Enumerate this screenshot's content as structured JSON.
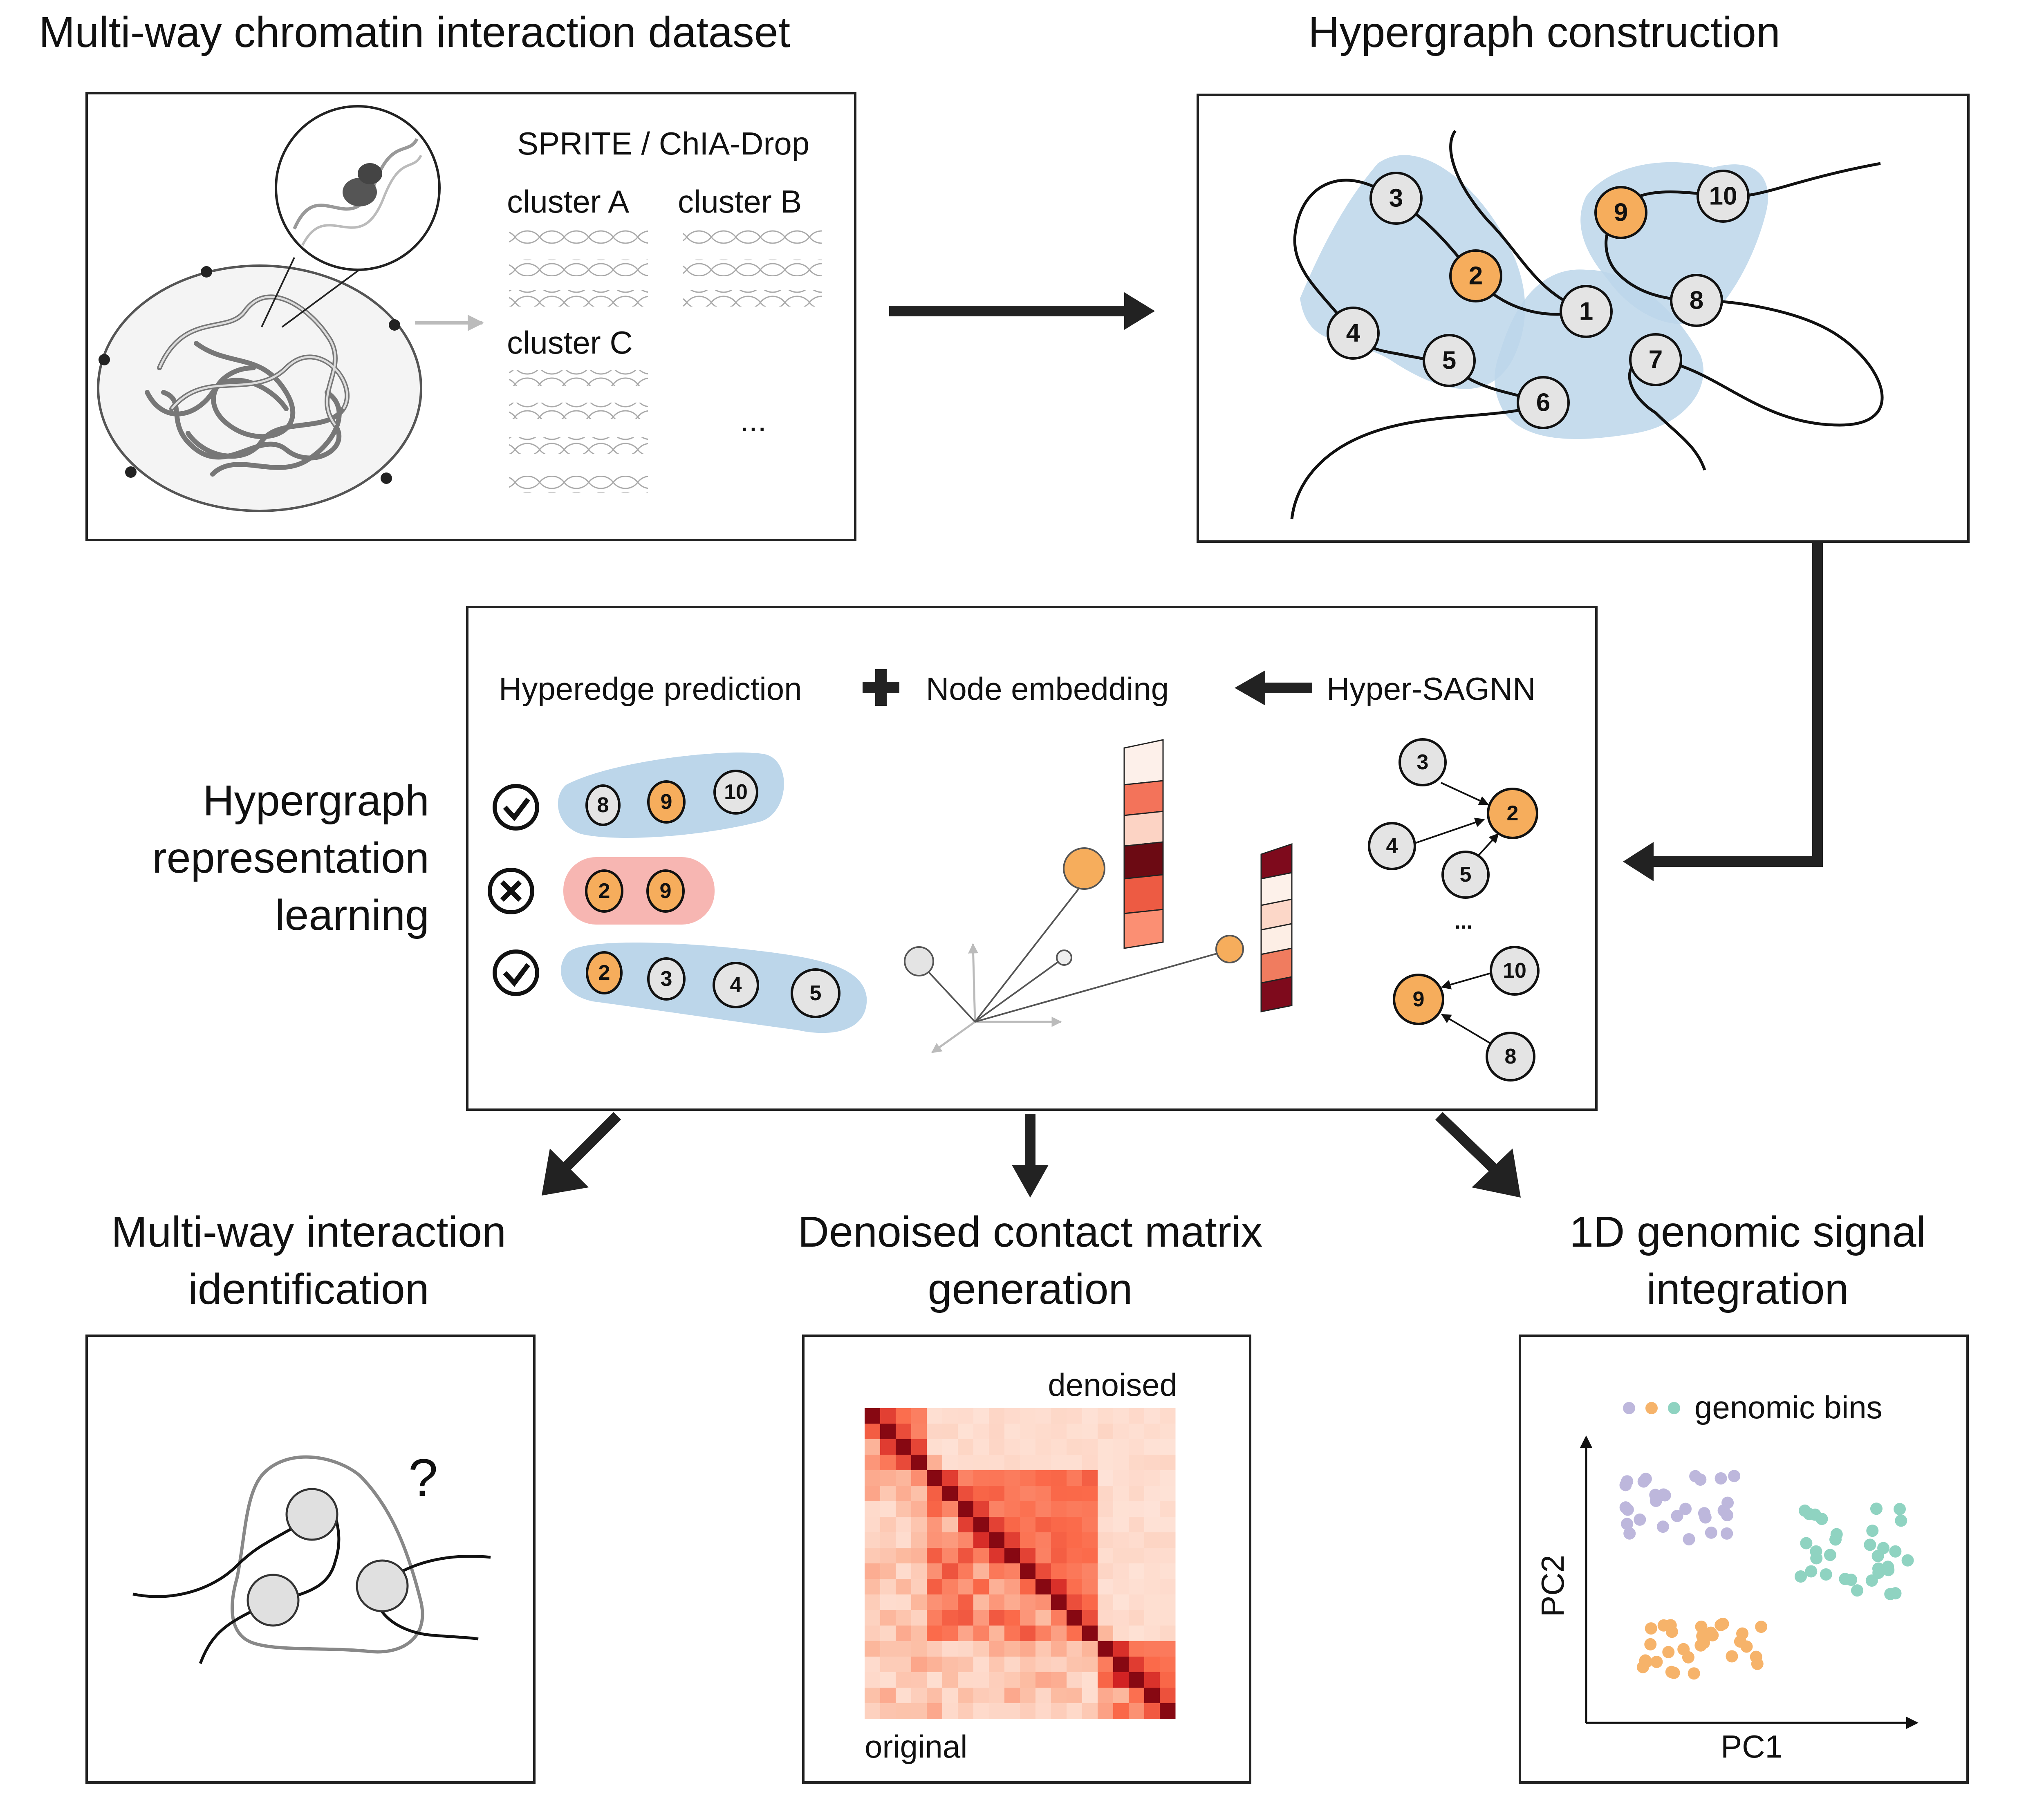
{
  "titles": {
    "dataset": "Multi-way chromatin interaction dataset",
    "construction": "Hypergraph construction",
    "learning_1": "Hypergraph",
    "learning_2": "representation",
    "learning_3": "learning",
    "identification_1": "Multi-way interaction",
    "identification_2": "identification",
    "denoised_1": "Denoised contact matrix",
    "denoised_2": "generation",
    "signal_1": "1D genomic signal",
    "signal_2": "integration"
  },
  "dataset_panel": {
    "method": "SPRITE / ChIA-Drop",
    "cluster_a": "cluster A",
    "cluster_b": "cluster B",
    "cluster_c": "cluster C",
    "ellipsis": "..."
  },
  "learning_panel": {
    "hyperedge_prediction": "Hyperedge prediction",
    "node_embedding": "Node embedding",
    "model": "Hyper-SAGNN",
    "ellipsis": "...",
    "rows": [
      {
        "status": "valid",
        "nodes": [
          "8",
          "9",
          "10"
        ]
      },
      {
        "status": "invalid",
        "nodes": [
          "2",
          "9"
        ]
      },
      {
        "status": "valid",
        "nodes": [
          "2",
          "3",
          "4",
          "5"
        ]
      }
    ]
  },
  "hypergraph_nodes": [
    "1",
    "2",
    "3",
    "4",
    "5",
    "6",
    "7",
    "8",
    "9",
    "10"
  ],
  "highlight_nodes": [
    "2",
    "9"
  ],
  "matrix_panel": {
    "denoised_label": "denoised",
    "original_label": "original"
  },
  "signal_panel": {
    "legend": "genomic bins",
    "xlabel": "PC1",
    "ylabel": "PC2"
  },
  "identification_panel": {
    "question": "?"
  },
  "colors": {
    "hyperedge_blue": "#bcd6ea",
    "highlight_orange": "#f6ad5c",
    "negative_pink": "#f7b6b2",
    "cluster_purple": "#bdb7dc",
    "cluster_orange": "#f6b36a",
    "cluster_teal": "#8fd3c1"
  }
}
